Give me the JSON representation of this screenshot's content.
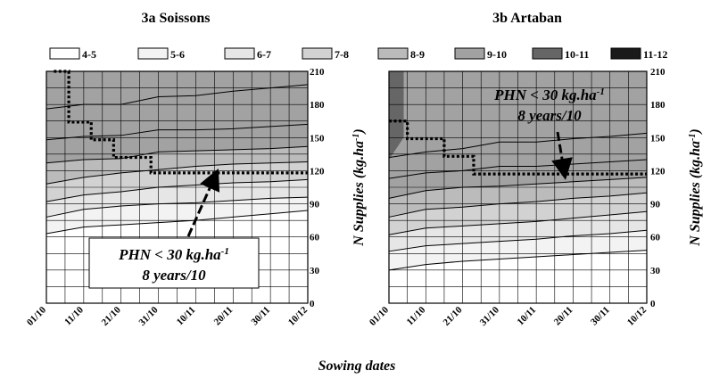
{
  "figure": {
    "xlabel": "Sowing dates"
  },
  "legend": {
    "items": [
      {
        "label": "4-5",
        "color": "#ffffff"
      },
      {
        "label": "5-6",
        "color": "#f3f3f3"
      },
      {
        "label": "6-7",
        "color": "#e6e6e6"
      },
      {
        "label": "7-8",
        "color": "#d2d2d2"
      },
      {
        "label": "8-9",
        "color": "#bbbbbb"
      },
      {
        "label": "9-10",
        "color": "#a2a2a2"
      },
      {
        "label": "10-11",
        "color": "#666666"
      },
      {
        "label": "11-12",
        "color": "#1a1a1a"
      }
    ]
  },
  "chart_data": [
    {
      "type": "area",
      "title": "3a Soissons",
      "xlabel": "Sowing dates",
      "ylabel": "N Supplies (kg.ha",
      "ylabel_sup": "-1",
      "ylabel_close": ")",
      "x_ticks": [
        "01/10",
        "11/10",
        "21/10",
        "31/10",
        "10/11",
        "20/11",
        "30/11",
        "10/12"
      ],
      "y_ticks": [
        0,
        30,
        60,
        90,
        120,
        150,
        180,
        210
      ],
      "ylim": [
        0,
        210
      ],
      "grid": true,
      "contour_series": [
        {
          "x": [
            0,
            10,
            20,
            30,
            40,
            50,
            60,
            70
          ],
          "values": [
            63,
            69,
            71,
            73,
            75,
            78,
            81,
            84
          ]
        },
        {
          "x": [
            0,
            10,
            20,
            30,
            40,
            50,
            60,
            70
          ],
          "values": [
            78,
            85,
            88,
            90,
            91,
            93,
            95,
            96
          ]
        },
        {
          "x": [
            0,
            10,
            20,
            30,
            40,
            50,
            60,
            70
          ],
          "values": [
            92,
            98,
            101,
            105,
            107,
            109,
            110,
            112
          ]
        },
        {
          "x": [
            0,
            10,
            20,
            30,
            40,
            50,
            60,
            70
          ],
          "values": [
            108,
            114,
            118,
            121,
            124,
            126,
            127,
            128
          ]
        },
        {
          "x": [
            0,
            10,
            20,
            30,
            40,
            50,
            60,
            70
          ],
          "values": [
            127,
            130,
            131,
            137,
            138,
            139,
            140,
            142
          ]
        },
        {
          "x": [
            0,
            10,
            20,
            30,
            40,
            50,
            60,
            70
          ],
          "values": [
            148,
            151,
            152,
            157,
            157,
            158,
            160,
            162
          ]
        },
        {
          "x": [
            0,
            10,
            20,
            30,
            40,
            50,
            60,
            70
          ],
          "values": [
            176,
            180,
            180,
            187,
            188,
            192,
            195,
            198
          ]
        }
      ],
      "zone_colors": [
        "#ffffff",
        "#f3f3f3",
        "#e6e6e6",
        "#d2d2d2",
        "#bbbbbb",
        "#a2a2a2",
        "#a2a2a2",
        "#a2a2a2"
      ],
      "threshold": {
        "x": [
          2,
          6,
          6,
          12,
          12,
          18,
          18,
          28,
          28,
          70
        ],
        "y": [
          210,
          210,
          164,
          164,
          148,
          148,
          132,
          132,
          118,
          118
        ]
      },
      "annotation": {
        "line1": "PHN < 30 kg.ha",
        "line1_sup": "-1",
        "line2": "8 years/10"
      }
    },
    {
      "type": "area",
      "title": "3b Artaban",
      "xlabel": "Sowing dates",
      "ylabel": "N Supplies (kg.ha",
      "ylabel_sup": "-1",
      "ylabel_close": ")",
      "x_ticks": [
        "01/10",
        "11/10",
        "21/10",
        "31/10",
        "10/11",
        "20/11",
        "30/11",
        "10/12"
      ],
      "y_ticks": [
        0,
        30,
        60,
        90,
        120,
        150,
        180,
        210
      ],
      "ylim": [
        0,
        210
      ],
      "grid": true,
      "contour_series": [
        {
          "x": [
            0,
            10,
            20,
            30,
            40,
            50,
            60,
            70
          ],
          "values": [
            30,
            35,
            38,
            40,
            42,
            44,
            46,
            48
          ]
        },
        {
          "x": [
            0,
            10,
            20,
            30,
            40,
            50,
            60,
            70
          ],
          "values": [
            47,
            52,
            54,
            56,
            58,
            61,
            63,
            66
          ]
        },
        {
          "x": [
            0,
            10,
            20,
            30,
            40,
            50,
            60,
            70
          ],
          "values": [
            62,
            68,
            70,
            72,
            74,
            77,
            80,
            83
          ]
        },
        {
          "x": [
            0,
            10,
            20,
            30,
            40,
            50,
            60,
            70
          ],
          "values": [
            78,
            85,
            87,
            90,
            92,
            95,
            97,
            100
          ]
        },
        {
          "x": [
            0,
            10,
            20,
            30,
            40,
            50,
            60,
            70
          ],
          "values": [
            95,
            102,
            105,
            106,
            108,
            110,
            112,
            114
          ]
        },
        {
          "x": [
            0,
            10,
            20,
            30,
            40,
            50,
            60,
            70
          ],
          "values": [
            113,
            118,
            120,
            124,
            124,
            126,
            128,
            130
          ]
        },
        {
          "x": [
            0,
            10,
            20,
            30,
            40,
            50,
            60,
            70
          ],
          "values": [
            132,
            137,
            140,
            146,
            146,
            149,
            151,
            154
          ]
        }
      ],
      "zone_colors": [
        "#ffffff",
        "#f3f3f3",
        "#e6e6e6",
        "#d2d2d2",
        "#bbbbbb",
        "#a2a2a2",
        "#a2a2a2",
        "#a2a2a2"
      ],
      "dark_zone": {
        "x": [
          0,
          4,
          4,
          0
        ],
        "y": [
          210,
          210,
          150,
          130
        ],
        "color": "#666666"
      },
      "threshold": {
        "x": [
          0,
          5,
          5,
          15,
          15,
          23,
          23,
          32,
          32,
          70
        ],
        "y": [
          165,
          165,
          149,
          149,
          133,
          133,
          117,
          117,
          117,
          117
        ]
      },
      "annotation": {
        "line1": "PHN < 30 kg.ha",
        "line1_sup": "-1",
        "line2": "8 years/10"
      }
    }
  ]
}
